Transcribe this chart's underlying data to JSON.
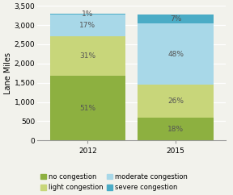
{
  "years": [
    "2012",
    "2015"
  ],
  "total": 3300,
  "categories": [
    "no congestion",
    "light congestion",
    "moderate congestion",
    "severe congestion"
  ],
  "percentages": {
    "2012": [
      51,
      31,
      17,
      1
    ],
    "2015": [
      18,
      26,
      48,
      7
    ]
  },
  "colors": [
    "#8db040",
    "#c8d67a",
    "#a8d8e8",
    "#4bacc6"
  ],
  "ylabel": "Lane Miles",
  "yticks": [
    0,
    500,
    1000,
    1500,
    2000,
    2500,
    3000,
    3500
  ],
  "ylim": [
    0,
    3500
  ],
  "bar_width": 0.6,
  "background_color": "#f2f2ec",
  "label_fontsize": 6.5,
  "legend_fontsize": 6.0,
  "tick_fontsize": 6.5,
  "ylabel_fontsize": 7,
  "x_positions": [
    0.3,
    1.0
  ]
}
